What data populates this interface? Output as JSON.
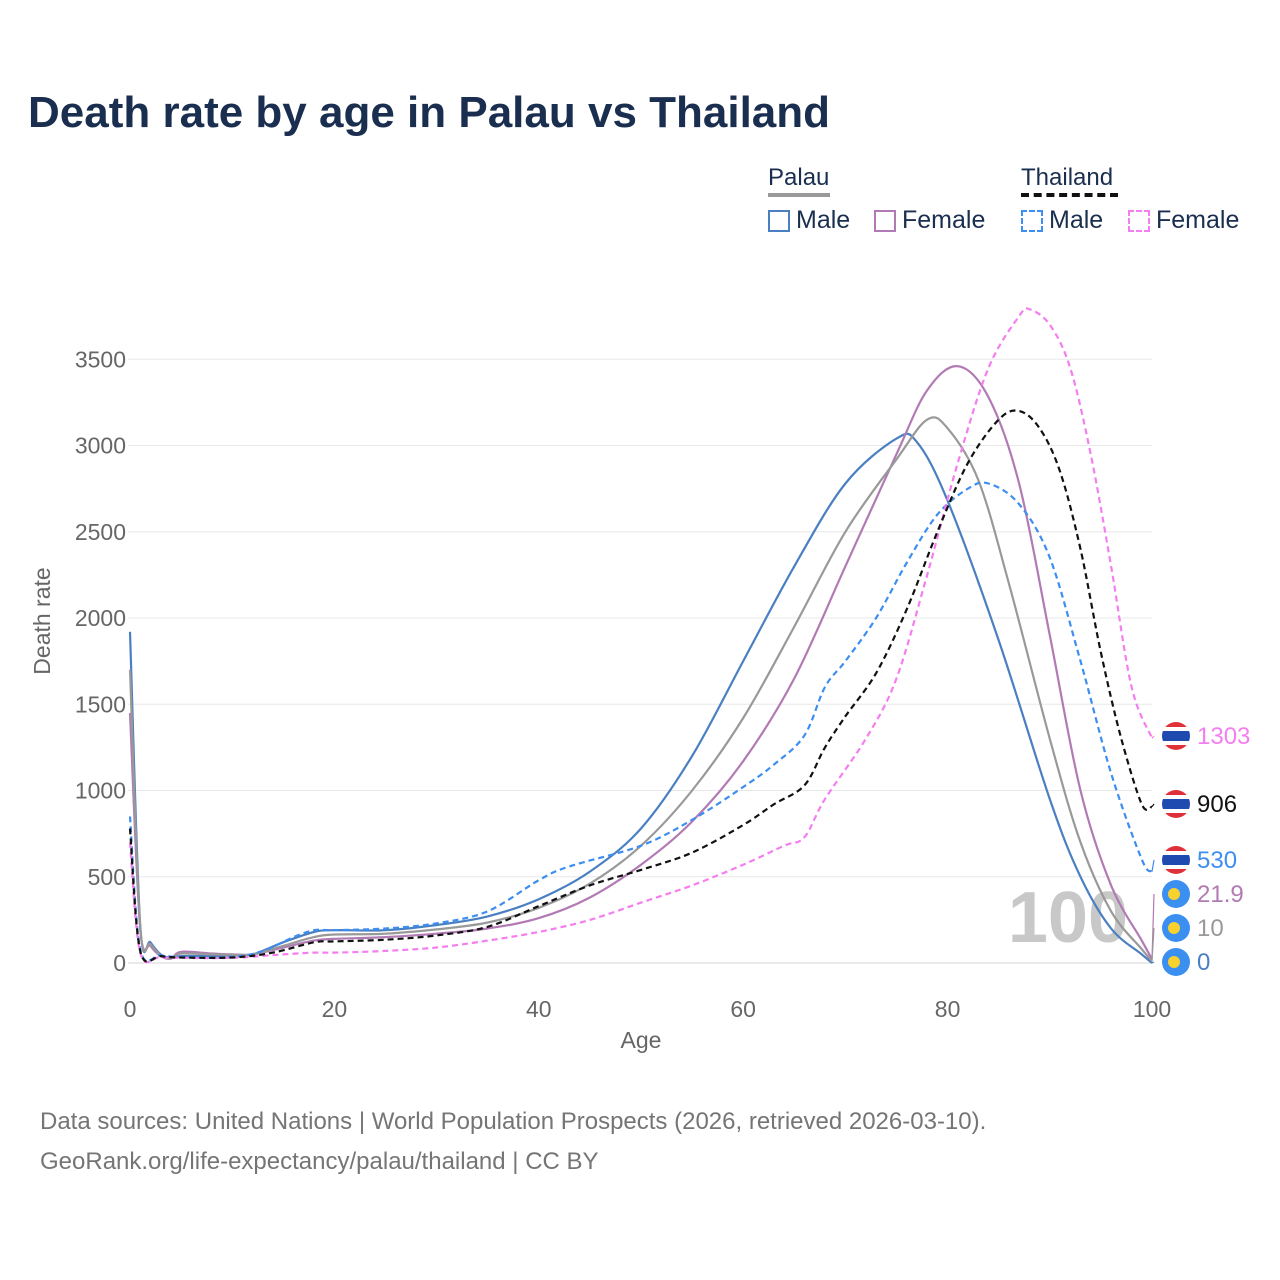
{
  "title": "Death rate by age in Palau vs Thailand",
  "legend": {
    "groups": [
      {
        "name": "Palau",
        "underline_color": "#999999",
        "underline_style": "solid"
      },
      {
        "name": "Thailand",
        "underline_color": "#111111",
        "underline_style": "dashed"
      }
    ],
    "items": [
      {
        "label": "Male",
        "color": "#4a7fc1",
        "style": "solid"
      },
      {
        "label": "Female",
        "color": "#b27ab4",
        "style": "solid"
      },
      {
        "label": "Male",
        "color": "#3d8ef0",
        "style": "dashed"
      },
      {
        "label": "Female",
        "color": "#f47ef0",
        "style": "dashed"
      }
    ]
  },
  "source": {
    "line1": "Data sources: United Nations | World Population Prospects (2026, retrieved 2026-03-10).",
    "line2": "GeoRank.org/life-expectancy/palau/thailand | CC BY"
  },
  "chart_data": {
    "type": "line",
    "title": "Death rate by age in Palau vs Thailand",
    "xlabel": "Age",
    "ylabel": "Death rate",
    "xlim": [
      0,
      100
    ],
    "ylim": [
      0,
      3800
    ],
    "xticks": [
      "0",
      "20",
      "40",
      "60",
      "80",
      "100"
    ],
    "yticks": [
      "0",
      "500",
      "1000",
      "1500",
      "2000",
      "2500",
      "3000",
      "3500"
    ],
    "grid": true,
    "watermark": "100",
    "series": [
      {
        "name": "Palau Male",
        "color": "#4a7fc1",
        "dash": false,
        "points": [
          [
            0,
            1920
          ],
          [
            1,
            220
          ],
          [
            2,
            120
          ],
          [
            3,
            50
          ],
          [
            4,
            30
          ],
          [
            5,
            40
          ],
          [
            8,
            40
          ],
          [
            10,
            45
          ],
          [
            12,
            50
          ],
          [
            15,
            120
          ],
          [
            18,
            180
          ],
          [
            20,
            190
          ],
          [
            25,
            190
          ],
          [
            30,
            220
          ],
          [
            35,
            270
          ],
          [
            40,
            370
          ],
          [
            45,
            530
          ],
          [
            50,
            780
          ],
          [
            55,
            1200
          ],
          [
            60,
            1750
          ],
          [
            65,
            2300
          ],
          [
            70,
            2780
          ],
          [
            75,
            3040
          ],
          [
            77,
            3020
          ],
          [
            80,
            2680
          ],
          [
            85,
            1870
          ],
          [
            90,
            950
          ],
          [
            93,
            500
          ],
          [
            96,
            200
          ],
          [
            99,
            50
          ],
          [
            100,
            0
          ]
        ],
        "end_value": "0"
      },
      {
        "name": "Palau Female",
        "color": "#b27ab4",
        "dash": false,
        "points": [
          [
            0,
            1450
          ],
          [
            1,
            200
          ],
          [
            2,
            100
          ],
          [
            3,
            40
          ],
          [
            4,
            25
          ],
          [
            5,
            65
          ],
          [
            8,
            55
          ],
          [
            10,
            50
          ],
          [
            12,
            50
          ],
          [
            15,
            90
          ],
          [
            18,
            130
          ],
          [
            20,
            140
          ],
          [
            25,
            150
          ],
          [
            30,
            170
          ],
          [
            35,
            200
          ],
          [
            40,
            260
          ],
          [
            45,
            380
          ],
          [
            50,
            570
          ],
          [
            55,
            820
          ],
          [
            60,
            1170
          ],
          [
            65,
            1650
          ],
          [
            70,
            2300
          ],
          [
            75,
            2950
          ],
          [
            78,
            3320
          ],
          [
            81,
            3460
          ],
          [
            84,
            3280
          ],
          [
            87,
            2780
          ],
          [
            90,
            1900
          ],
          [
            93,
            1000
          ],
          [
            96,
            450
          ],
          [
            99,
            130
          ],
          [
            100,
            21.9
          ]
        ],
        "end_value": "21.9"
      },
      {
        "name": "Palau Total",
        "color": "#999999",
        "dash": false,
        "points": [
          [
            0,
            1700
          ],
          [
            1,
            210
          ],
          [
            2,
            110
          ],
          [
            3,
            45
          ],
          [
            4,
            28
          ],
          [
            5,
            55
          ],
          [
            8,
            50
          ],
          [
            10,
            48
          ],
          [
            12,
            50
          ],
          [
            15,
            100
          ],
          [
            18,
            150
          ],
          [
            20,
            165
          ],
          [
            25,
            170
          ],
          [
            30,
            195
          ],
          [
            35,
            235
          ],
          [
            40,
            320
          ],
          [
            45,
            460
          ],
          [
            50,
            680
          ],
          [
            55,
            1000
          ],
          [
            60,
            1420
          ],
          [
            65,
            1950
          ],
          [
            70,
            2500
          ],
          [
            75,
            2920
          ],
          [
            78,
            3150
          ],
          [
            80,
            3100
          ],
          [
            83,
            2800
          ],
          [
            86,
            2200
          ],
          [
            90,
            1300
          ],
          [
            93,
            700
          ],
          [
            96,
            300
          ],
          [
            99,
            80
          ],
          [
            100,
            10
          ]
        ],
        "end_value": "10"
      },
      {
        "name": "Thailand Male",
        "color": "#3d8ef0",
        "dash": true,
        "points": [
          [
            0,
            850
          ],
          [
            1,
            80
          ],
          [
            3,
            45
          ],
          [
            5,
            35
          ],
          [
            10,
            35
          ],
          [
            13,
            70
          ],
          [
            16,
            150
          ],
          [
            18,
            190
          ],
          [
            20,
            190
          ],
          [
            25,
            200
          ],
          [
            30,
            230
          ],
          [
            35,
            300
          ],
          [
            40,
            480
          ],
          [
            43,
            560
          ],
          [
            50,
            680
          ],
          [
            55,
            830
          ],
          [
            60,
            1020
          ],
          [
            63,
            1150
          ],
          [
            66,
            1320
          ],
          [
            68,
            1600
          ],
          [
            70,
            1750
          ],
          [
            73,
            2000
          ],
          [
            76,
            2320
          ],
          [
            79,
            2600
          ],
          [
            82,
            2750
          ],
          [
            84,
            2780
          ],
          [
            87,
            2660
          ],
          [
            90,
            2350
          ],
          [
            93,
            1750
          ],
          [
            96,
            1100
          ],
          [
            99,
            600
          ],
          [
            100,
            530
          ]
        ],
        "end_value": "530"
      },
      {
        "name": "Thailand Female",
        "color": "#f47ef0",
        "dash": true,
        "points": [
          [
            0,
            700
          ],
          [
            1,
            60
          ],
          [
            3,
            35
          ],
          [
            5,
            30
          ],
          [
            10,
            30
          ],
          [
            15,
            50
          ],
          [
            18,
            60
          ],
          [
            20,
            60
          ],
          [
            25,
            70
          ],
          [
            30,
            90
          ],
          [
            35,
            130
          ],
          [
            40,
            180
          ],
          [
            45,
            250
          ],
          [
            50,
            350
          ],
          [
            55,
            450
          ],
          [
            60,
            570
          ],
          [
            64,
            680
          ],
          [
            66,
            730
          ],
          [
            68,
            950
          ],
          [
            72,
            1300
          ],
          [
            75,
            1650
          ],
          [
            78,
            2250
          ],
          [
            81,
            2900
          ],
          [
            84,
            3450
          ],
          [
            87,
            3750
          ],
          [
            88,
            3790
          ],
          [
            90,
            3700
          ],
          [
            92,
            3450
          ],
          [
            94,
            2950
          ],
          [
            96,
            2300
          ],
          [
            98,
            1600
          ],
          [
            100,
            1303
          ]
        ],
        "end_value": "1303"
      },
      {
        "name": "Thailand Total",
        "color": "#111111",
        "dash": true,
        "points": [
          [
            0,
            780
          ],
          [
            1,
            70
          ],
          [
            3,
            40
          ],
          [
            5,
            32
          ],
          [
            10,
            32
          ],
          [
            14,
            60
          ],
          [
            18,
            120
          ],
          [
            20,
            125
          ],
          [
            25,
            135
          ],
          [
            30,
            160
          ],
          [
            35,
            210
          ],
          [
            40,
            330
          ],
          [
            45,
            450
          ],
          [
            50,
            540
          ],
          [
            55,
            640
          ],
          [
            60,
            800
          ],
          [
            63,
            920
          ],
          [
            66,
            1030
          ],
          [
            68,
            1250
          ],
          [
            70,
            1430
          ],
          [
            73,
            1680
          ],
          [
            76,
            2050
          ],
          [
            79,
            2500
          ],
          [
            82,
            2900
          ],
          [
            85,
            3150
          ],
          [
            87,
            3200
          ],
          [
            89,
            3100
          ],
          [
            91,
            2850
          ],
          [
            93,
            2400
          ],
          [
            95,
            1800
          ],
          [
            97,
            1300
          ],
          [
            99,
            920
          ],
          [
            100,
            906
          ]
        ],
        "end_value": "906"
      }
    ]
  }
}
